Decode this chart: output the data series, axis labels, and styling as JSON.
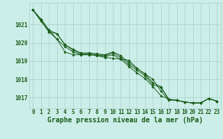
{
  "background_color": "#cceee8",
  "grid_color": "#aacccc",
  "line_color": "#1a5c1a",
  "marker_color": "#1a5c1a",
  "xlim": [
    -0.5,
    23.5
  ],
  "ylim": [
    1016.4,
    1022.2
  ],
  "yticks": [
    1017,
    1018,
    1019,
    1020,
    1021
  ],
  "xticks": [
    0,
    1,
    2,
    3,
    4,
    5,
    6,
    7,
    8,
    9,
    10,
    11,
    12,
    13,
    14,
    15,
    16,
    17,
    18,
    19,
    20,
    21,
    22,
    23
  ],
  "xlabel": "Graphe pression niveau de la mer (hPa)",
  "series": [
    [
      1021.8,
      1021.3,
      1020.7,
      1020.2,
      1019.8,
      1019.5,
      1019.35,
      1019.35,
      1019.3,
      1019.25,
      1019.35,
      1019.1,
      1018.7,
      1018.35,
      1018.05,
      1017.6,
      1017.1,
      1016.9,
      1016.85,
      1016.75,
      1016.7,
      1016.7,
      1016.95,
      1016.8
    ],
    [
      1021.8,
      1021.3,
      1020.7,
      1020.5,
      1019.9,
      1019.6,
      1019.4,
      1019.4,
      1019.35,
      1019.3,
      1019.45,
      1019.2,
      1018.8,
      1018.5,
      1018.2,
      1017.7,
      1017.55,
      1016.9,
      1016.85,
      1016.75,
      1016.7,
      1016.7,
      1016.95,
      1016.8
    ],
    [
      1021.8,
      1021.2,
      1020.6,
      1020.5,
      1019.9,
      1019.65,
      1019.45,
      1019.45,
      1019.4,
      1019.35,
      1019.5,
      1019.3,
      1018.9,
      1018.6,
      1018.3,
      1017.8,
      1017.6,
      1016.9,
      1016.85,
      1016.75,
      1016.7,
      1016.7,
      1016.95,
      1016.8
    ],
    [
      1021.8,
      1021.2,
      1020.6,
      1020.2,
      1019.5,
      1019.35,
      1019.35,
      1019.35,
      1019.3,
      1019.2,
      1019.15,
      1019.1,
      1019.05,
      1018.6,
      1018.3,
      1018.0,
      1017.35,
      1016.85,
      1016.85,
      1016.75,
      1016.7,
      1016.7,
      1016.95,
      1016.8
    ]
  ],
  "title_fontsize": 7,
  "tick_fontsize": 5.5,
  "title_color": "#1a5c1a",
  "tick_color": "#1a5c1a",
  "figsize": [
    3.2,
    2.0
  ],
  "dpi": 100
}
